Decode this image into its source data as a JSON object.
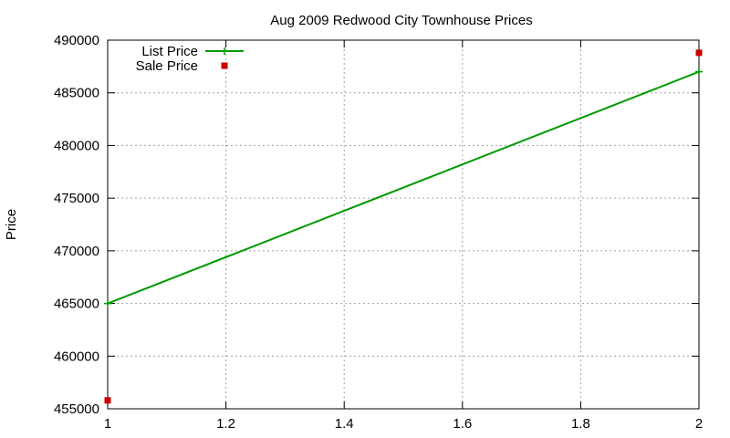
{
  "chart_data": {
    "type": "line",
    "title": "Aug 2009 Redwood City Townhouse Prices",
    "xlabel": "",
    "ylabel": "Price",
    "xlim": [
      1,
      2
    ],
    "ylim": [
      455000,
      490000
    ],
    "x_ticks": [
      "1",
      "1.2",
      "1.4",
      "1.6",
      "1.8",
      "2"
    ],
    "x_tick_values": [
      1,
      1.2,
      1.4,
      1.6,
      1.8,
      2
    ],
    "y_ticks": [
      "455000",
      "460000",
      "465000",
      "470000",
      "475000",
      "480000",
      "485000",
      "490000"
    ],
    "y_tick_values": [
      455000,
      460000,
      465000,
      470000,
      475000,
      480000,
      485000,
      490000
    ],
    "grid": true,
    "legend_position": "top-left",
    "series": [
      {
        "name": "List Price",
        "style": "linespoints",
        "marker": "plus",
        "color": "#009900",
        "x": [
          1,
          2
        ],
        "y": [
          465000,
          487000
        ]
      },
      {
        "name": "Sale Price",
        "style": "points",
        "marker": "square",
        "color": "#cc0000",
        "x": [
          1,
          2
        ],
        "y": [
          455800,
          488800
        ]
      }
    ]
  }
}
